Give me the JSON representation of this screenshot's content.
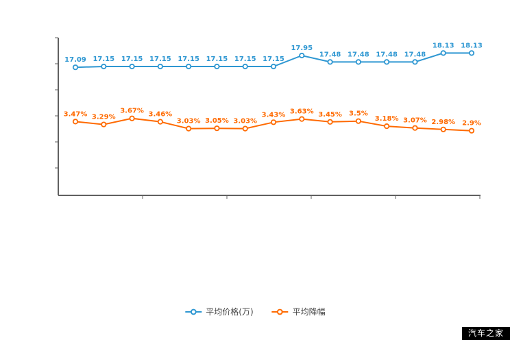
{
  "watermark": "汽车之家",
  "legend": {
    "items": [
      {
        "label": "平均价格(万)",
        "color": "#2e97d2"
      },
      {
        "label": "平均降幅",
        "color": "#ff6a00"
      }
    ]
  },
  "chart_data": {
    "type": "line",
    "title": "",
    "xlabel": "",
    "ylabel": "",
    "x_axis": {
      "tick_labels_visible": false
    },
    "y_axis": {
      "tick_labels_visible": false
    },
    "legend_position": "bottom",
    "grid": false,
    "series": [
      {
        "name": "平均价格(万)",
        "color": "#2e97d2",
        "values": [
          17.09,
          17.15,
          17.15,
          17.15,
          17.15,
          17.15,
          17.15,
          17.15,
          17.95,
          17.48,
          17.48,
          17.48,
          17.48,
          18.13,
          18.13
        ],
        "labels": [
          "17.09",
          "17.15",
          "17.15",
          "17.15",
          "17.15",
          "17.15",
          "17.15",
          "17.15",
          "17.95",
          "17.48",
          "17.48",
          "17.48",
          "17.48",
          "18.13",
          "18.13"
        ]
      },
      {
        "name": "平均降幅",
        "color": "#ff6a00",
        "values": [
          3.47,
          3.29,
          3.67,
          3.46,
          3.03,
          3.05,
          3.03,
          3.43,
          3.63,
          3.45,
          3.5,
          3.18,
          3.07,
          2.98,
          2.9
        ],
        "labels": [
          "3.47%",
          "3.29%",
          "3.67%",
          "3.46%",
          "3.03%",
          "3.05%",
          "3.03%",
          "3.43%",
          "3.63%",
          "3.45%",
          "3.5%",
          "3.18%",
          "3.07%",
          "2.98%",
          "2.9%"
        ]
      }
    ]
  }
}
